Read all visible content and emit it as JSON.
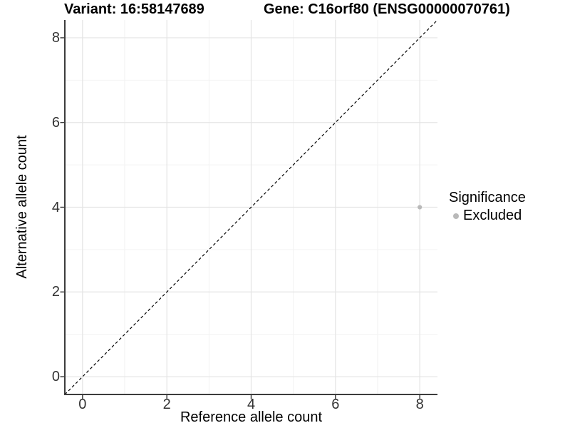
{
  "header": {
    "variant_title": "Variant: 16:58147689",
    "gene_title": "Gene: C16orf80 (ENSG00000070761)"
  },
  "legend": {
    "title": "Significance",
    "items": [
      {
        "label": "Excluded",
        "color": "#b9b9b9"
      }
    ]
  },
  "chart_data": {
    "type": "scatter",
    "xlabel": "Reference allele count",
    "ylabel": "Alternative allele count",
    "xlim": [
      -0.42,
      8.42
    ],
    "ylim": [
      -0.42,
      8.42
    ],
    "xticks": [
      0,
      2,
      4,
      6,
      8
    ],
    "yticks": [
      0,
      2,
      4,
      6,
      8
    ],
    "x_minor_gridlines": [
      1,
      3,
      5,
      7
    ],
    "y_minor_gridlines": [
      1,
      3,
      5,
      7
    ],
    "grid": true,
    "legend_position": "right",
    "colors": {
      "major_grid": "#e4e4e4",
      "minor_grid": "#f1f1f1",
      "axis_line": "#3c3c3c",
      "tick_mark": "#333333",
      "identity_line": "#000000",
      "point": "#b9b9b9"
    },
    "identity_line": {
      "style": "dashed",
      "from": [
        -0.42,
        -0.42
      ],
      "to": [
        8.42,
        8.42
      ]
    },
    "series": [
      {
        "name": "Excluded",
        "color": "#b9b9b9",
        "points": [
          [
            8,
            4
          ]
        ]
      }
    ]
  }
}
